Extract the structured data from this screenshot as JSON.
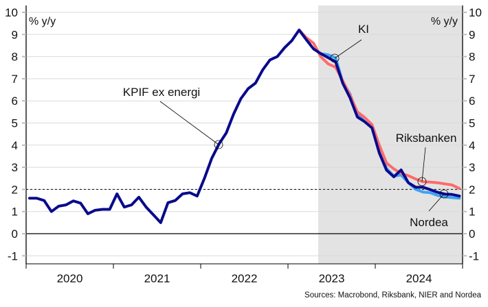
{
  "chart_data": {
    "type": "line",
    "ylabel_left": "% y/y",
    "ylabel_right": "% y/y",
    "ylim": [
      -1,
      10
    ],
    "yticks": [
      "-1",
      "0",
      "1",
      "2",
      "3",
      "4",
      "5",
      "6",
      "7",
      "8",
      "9",
      "10"
    ],
    "xticks": [
      "2020",
      "2021",
      "2022",
      "2023",
      "2024"
    ],
    "x_start": "2020-01",
    "x_frequency": "monthly",
    "forecast_shade_start": "2023-05",
    "reference_line": 2,
    "grid": true,
    "annotations": {
      "kpif": "KPIF ex energi",
      "ki": "KI",
      "riksbanken": "Riksbanken",
      "nordea": "Nordea"
    },
    "series": [
      {
        "name": "KI",
        "color": "#3fa2f2",
        "start": "2023-05",
        "values": [
          8.13,
          8.08,
          7.95,
          6.85,
          6.3,
          5.4,
          5.06,
          4.78,
          3.8,
          2.95,
          2.6,
          2.65,
          2.3,
          2.0,
          1.88,
          1.85,
          1.73,
          1.66,
          1.63,
          1.6
        ]
      },
      {
        "name": "Riksbanken",
        "color": "#ff6a6a",
        "start": "2023-02",
        "values": [
          9.2,
          8.85,
          8.6,
          7.98,
          7.67,
          7.52,
          6.9,
          6.24,
          5.5,
          5.25,
          4.93,
          4.0,
          3.19,
          2.93,
          2.72,
          2.62,
          2.47,
          2.35,
          2.33,
          2.3,
          2.25,
          2.2,
          2.04
        ]
      },
      {
        "name": "KPIF ex energi / Nordea",
        "color": "#0a0a8c",
        "start": "2020-01",
        "values": [
          1.6,
          1.6,
          1.5,
          1.0,
          1.24,
          1.3,
          1.48,
          1.38,
          0.9,
          1.06,
          1.1,
          1.1,
          1.8,
          1.2,
          1.3,
          1.65,
          1.2,
          0.85,
          0.5,
          1.4,
          1.5,
          1.8,
          1.85,
          1.7,
          2.5,
          3.4,
          4.05,
          4.55,
          5.4,
          6.1,
          6.55,
          6.8,
          7.4,
          7.85,
          8.0,
          8.4,
          8.72,
          9.2,
          8.76,
          8.34,
          8.13,
          7.95,
          7.77,
          6.79,
          6.13,
          5.27,
          5.06,
          4.78,
          3.65,
          2.87,
          2.57,
          2.88,
          2.3,
          2.1,
          2.1,
          1.99,
          1.87,
          1.79,
          1.77,
          1.7
        ]
      }
    ],
    "source": "Sources: Macrobond, Riksbank, NIER and Nordea"
  }
}
